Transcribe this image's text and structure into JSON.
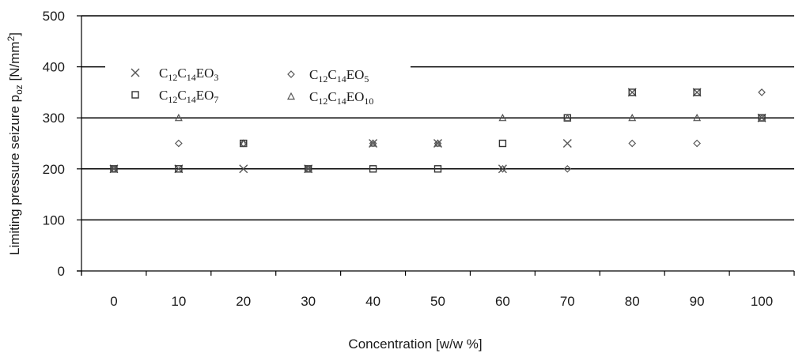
{
  "chart_data": {
    "type": "scatter",
    "title": "",
    "xlabel": "Concentration  [w/w %]",
    "ylabel": "Limiting pressure seizure p",
    "ylabel_sub": "oz",
    "ylabel_unit": " [N/mm",
    "ylabel_unit_sup": "2",
    "ylabel_close": "]",
    "ylim": [
      0,
      500
    ],
    "yticks": [
      "0",
      "100",
      "200",
      "300",
      "400",
      "500"
    ],
    "categories": [
      "0",
      "10",
      "20",
      "30",
      "40",
      "50",
      "60",
      "70",
      "80",
      "90",
      "100"
    ],
    "grid": true,
    "legend_position": "top-left",
    "series": [
      {
        "name": "C12C14EO3",
        "label_parts": {
          "a": "C",
          "s1": "12",
          "b": "C",
          "s2": "14",
          "c": "EO",
          "s3": "3"
        },
        "marker": "x",
        "values": [
          200,
          200,
          200,
          200,
          250,
          250,
          200,
          250,
          350,
          350,
          300
        ]
      },
      {
        "name": "C12C14EO5",
        "label_parts": {
          "a": "C",
          "s1": "12",
          "b": "C",
          "s2": "14",
          "c": "EO",
          "s3": "5"
        },
        "marker": "diamond",
        "values": [
          200,
          250,
          250,
          200,
          250,
          250,
          200,
          200,
          250,
          250,
          350
        ]
      },
      {
        "name": "C12C14EO7",
        "label_parts": {
          "a": "C",
          "s1": "12",
          "b": "C",
          "s2": "14",
          "c": "EO",
          "s3": "7"
        },
        "marker": "square",
        "values": [
          200,
          200,
          250,
          200,
          200,
          200,
          250,
          300,
          350,
          350,
          300
        ]
      },
      {
        "name": "C12C14EO10",
        "label_parts": {
          "a": "C",
          "s1": "12",
          "b": "C",
          "s2": "14",
          "c": "EO",
          "s3": "10"
        },
        "marker": "triangle",
        "values": [
          200,
          300,
          250,
          200,
          250,
          250,
          300,
          300,
          300,
          300,
          300
        ]
      }
    ]
  }
}
